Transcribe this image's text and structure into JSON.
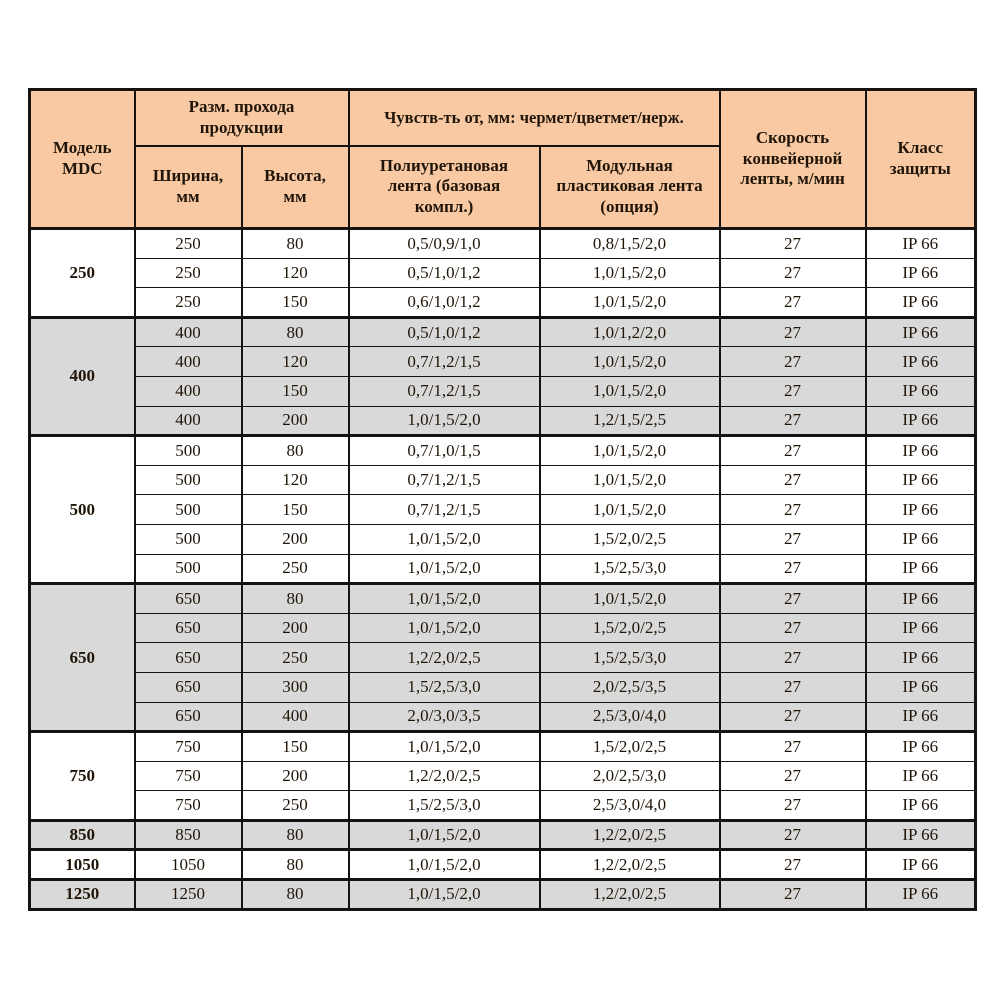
{
  "colors": {
    "page_bg": "#ffffff",
    "header_bg": "#f8c9a3",
    "row_shaded_bg": "#d9d9d9",
    "row_plain_bg": "#ffffff",
    "border": "#151210",
    "text": "#201508"
  },
  "table": {
    "header": {
      "model": "Модель\nMDC",
      "pass_size_group": "Разм. прохода\nпродукции",
      "width": "Ширина,\nмм",
      "height": "Высота,\nмм",
      "sensitivity_group": "Чувств-ть от, мм: чермет/цветмет/нерж.",
      "belt_polyurethane": "Полиуретановая\nлента (базовая\nкомпл.)",
      "belt_modular": "Модульная\nпластиковая лента\n(опция)",
      "conveyor_speed": "Скорость\nконвейерной\nленты, м/мин",
      "protection_class": "Класс\nзащиты"
    },
    "groups": [
      {
        "model": "250",
        "shaded": false,
        "rows": [
          {
            "width": "250",
            "height": "80",
            "pu": "0,5/0,9/1,0",
            "modular": "0,8/1,5/2,0",
            "speed": "27",
            "ip": "IP 66"
          },
          {
            "width": "250",
            "height": "120",
            "pu": "0,5/1,0/1,2",
            "modular": "1,0/1,5/2,0",
            "speed": "27",
            "ip": "IP 66"
          },
          {
            "width": "250",
            "height": "150",
            "pu": "0,6/1,0/1,2",
            "modular": "1,0/1,5/2,0",
            "speed": "27",
            "ip": "IP 66"
          }
        ]
      },
      {
        "model": "400",
        "shaded": true,
        "rows": [
          {
            "width": "400",
            "height": "80",
            "pu": "0,5/1,0/1,2",
            "modular": "1,0/1,2/2,0",
            "speed": "27",
            "ip": "IP 66"
          },
          {
            "width": "400",
            "height": "120",
            "pu": "0,7/1,2/1,5",
            "modular": "1,0/1,5/2,0",
            "speed": "27",
            "ip": "IP 66"
          },
          {
            "width": "400",
            "height": "150",
            "pu": "0,7/1,2/1,5",
            "modular": "1,0/1,5/2,0",
            "speed": "27",
            "ip": "IP 66"
          },
          {
            "width": "400",
            "height": "200",
            "pu": "1,0/1,5/2,0",
            "modular": "1,2/1,5/2,5",
            "speed": "27",
            "ip": "IP 66"
          }
        ]
      },
      {
        "model": "500",
        "shaded": false,
        "rows": [
          {
            "width": "500",
            "height": "80",
            "pu": "0,7/1,0/1,5",
            "modular": "1,0/1,5/2,0",
            "speed": "27",
            "ip": "IP 66"
          },
          {
            "width": "500",
            "height": "120",
            "pu": "0,7/1,2/1,5",
            "modular": "1,0/1,5/2,0",
            "speed": "27",
            "ip": "IP 66"
          },
          {
            "width": "500",
            "height": "150",
            "pu": "0,7/1,2/1,5",
            "modular": "1,0/1,5/2,0",
            "speed": "27",
            "ip": "IP 66"
          },
          {
            "width": "500",
            "height": "200",
            "pu": "1,0/1,5/2,0",
            "modular": "1,5/2,0/2,5",
            "speed": "27",
            "ip": "IP 66"
          },
          {
            "width": "500",
            "height": "250",
            "pu": "1,0/1,5/2,0",
            "modular": "1,5/2,5/3,0",
            "speed": "27",
            "ip": "IP 66"
          }
        ]
      },
      {
        "model": "650",
        "shaded": true,
        "rows": [
          {
            "width": "650",
            "height": "80",
            "pu": "1,0/1,5/2,0",
            "modular": "1,0/1,5/2,0",
            "speed": "27",
            "ip": "IP 66"
          },
          {
            "width": "650",
            "height": "200",
            "pu": "1,0/1,5/2,0",
            "modular": "1,5/2,0/2,5",
            "speed": "27",
            "ip": "IP 66"
          },
          {
            "width": "650",
            "height": "250",
            "pu": "1,2/2,0/2,5",
            "modular": "1,5/2,5/3,0",
            "speed": "27",
            "ip": "IP 66"
          },
          {
            "width": "650",
            "height": "300",
            "pu": "1,5/2,5/3,0",
            "modular": "2,0/2,5/3,5",
            "speed": "27",
            "ip": "IP 66"
          },
          {
            "width": "650",
            "height": "400",
            "pu": "2,0/3,0/3,5",
            "modular": "2,5/3,0/4,0",
            "speed": "27",
            "ip": "IP 66"
          }
        ]
      },
      {
        "model": "750",
        "shaded": false,
        "rows": [
          {
            "width": "750",
            "height": "150",
            "pu": "1,0/1,5/2,0",
            "modular": "1,5/2,0/2,5",
            "speed": "27",
            "ip": "IP 66"
          },
          {
            "width": "750",
            "height": "200",
            "pu": "1,2/2,0/2,5",
            "modular": "2,0/2,5/3,0",
            "speed": "27",
            "ip": "IP 66"
          },
          {
            "width": "750",
            "height": "250",
            "pu": "1,5/2,5/3,0",
            "modular": "2,5/3,0/4,0",
            "speed": "27",
            "ip": "IP 66"
          }
        ]
      },
      {
        "model": "850",
        "shaded": true,
        "rows": [
          {
            "width": "850",
            "height": "80",
            "pu": "1,0/1,5/2,0",
            "modular": "1,2/2,0/2,5",
            "speed": "27",
            "ip": "IP 66"
          }
        ]
      },
      {
        "model": "1050",
        "shaded": false,
        "rows": [
          {
            "width": "1050",
            "height": "80",
            "pu": "1,0/1,5/2,0",
            "modular": "1,2/2,0/2,5",
            "speed": "27",
            "ip": "IP 66"
          }
        ]
      },
      {
        "model": "1250",
        "shaded": true,
        "rows": [
          {
            "width": "1250",
            "height": "80",
            "pu": "1,0/1,5/2,0",
            "modular": "1,2/2,0/2,5",
            "speed": "27",
            "ip": "IP 66"
          }
        ]
      }
    ]
  }
}
